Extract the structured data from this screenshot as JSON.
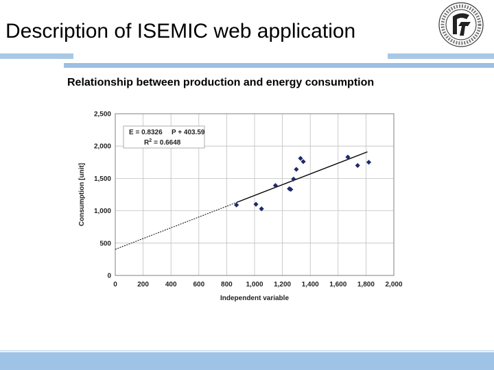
{
  "slide": {
    "title": "Description of ISEMIC web application",
    "subtitle": "Relationship between production and energy consumption"
  },
  "colors": {
    "accent_bar": "#a9c8e6",
    "points": "#1f2a6b",
    "trendline": "#000000",
    "grid": "#bfbfbf"
  },
  "chart_data": {
    "type": "scatter",
    "title": "",
    "xlabel": "Independent variable",
    "ylabel": "Consumption [unit]",
    "xlim": [
      0,
      2000
    ],
    "ylim": [
      0,
      2500
    ],
    "x_ticks": [
      0,
      200,
      400,
      600,
      800,
      1000,
      1200,
      1400,
      1600,
      1800,
      2000
    ],
    "x_tick_labels": [
      "0",
      "200",
      "400",
      "600",
      "800",
      "1,000",
      "1,200",
      "1,400",
      "1,600",
      "1,800",
      "2,000"
    ],
    "y_ticks": [
      0,
      500,
      1000,
      1500,
      2000,
      2500
    ],
    "y_tick_labels": [
      "0",
      "500",
      "1,000",
      "1,500",
      "2,000",
      "2,500"
    ],
    "grid": true,
    "legend": "none",
    "equation_line1_left": "E = 0.8326",
    "equation_line1_right": "P + 403.59",
    "equation_line2_r": "R",
    "equation_line2_sup": "2",
    "equation_line2_value": "= 0.6648",
    "trendline": {
      "slope": 0.8326,
      "intercept": 403.59,
      "solid_from_x": 870,
      "solid_to_x": 1810
    },
    "points": [
      {
        "x": 870,
        "y": 1090
      },
      {
        "x": 1010,
        "y": 1100
      },
      {
        "x": 1050,
        "y": 1030
      },
      {
        "x": 1150,
        "y": 1390
      },
      {
        "x": 1250,
        "y": 1340
      },
      {
        "x": 1260,
        "y": 1330
      },
      {
        "x": 1280,
        "y": 1490
      },
      {
        "x": 1300,
        "y": 1640
      },
      {
        "x": 1330,
        "y": 1810
      },
      {
        "x": 1350,
        "y": 1760
      },
      {
        "x": 1670,
        "y": 1830
      },
      {
        "x": 1740,
        "y": 1700
      },
      {
        "x": 1820,
        "y": 1750
      }
    ]
  }
}
